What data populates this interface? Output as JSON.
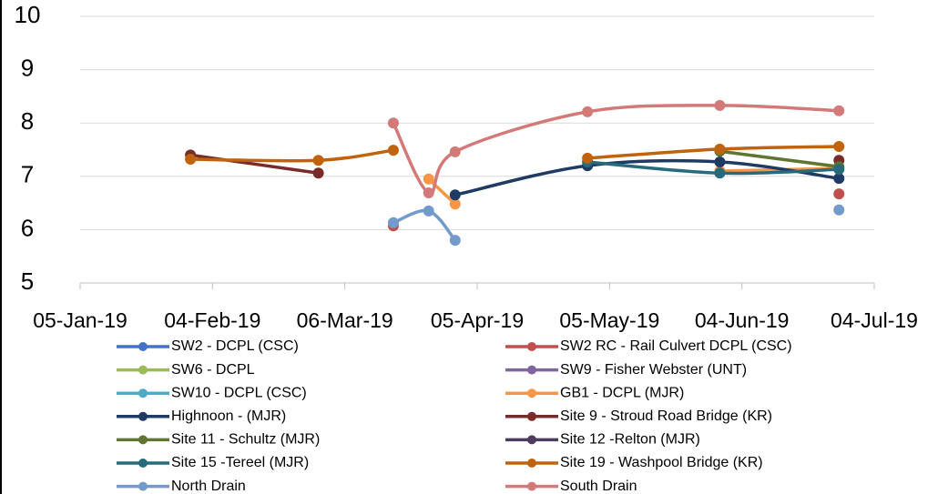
{
  "chart_data": {
    "type": "line",
    "x": [
      "2019-01-30",
      "2019-02-28",
      "2019-03-17",
      "2019-03-25",
      "2019-03-31",
      "2019-04-30",
      "2019-05-30",
      "2019-06-26"
    ],
    "xlim": [
      "2019-01-05",
      "2019-07-04"
    ],
    "xticks": [
      {
        "value": "2019-01-05",
        "label": "05-Jan-19"
      },
      {
        "value": "2019-02-04",
        "label": "04-Feb-19"
      },
      {
        "value": "2019-03-06",
        "label": "06-Mar-19"
      },
      {
        "value": "2019-04-05",
        "label": "05-Apr-19"
      },
      {
        "value": "2019-05-05",
        "label": "05-May-19"
      },
      {
        "value": "2019-06-04",
        "label": "04-Jun-19"
      },
      {
        "value": "2019-07-04",
        "label": "04-Jul-19"
      }
    ],
    "ylim": [
      5,
      10
    ],
    "yticks": [
      5,
      6,
      7,
      8,
      9,
      10
    ],
    "grid": true,
    "legend": "bottom",
    "series": [
      {
        "name": "SW2 - DCPL (CSC)",
        "color": "#4472c4",
        "values": [
          null,
          null,
          null,
          null,
          null,
          null,
          null,
          null
        ]
      },
      {
        "name": "SW2 RC - Rail Culvert DCPL (CSC)",
        "color": "#c0504d",
        "values": [
          null,
          null,
          6.07,
          null,
          null,
          null,
          null,
          6.67
        ]
      },
      {
        "name": "SW6 - DCPL",
        "color": "#9bbb59",
        "values": [
          null,
          null,
          null,
          null,
          null,
          null,
          null,
          null
        ]
      },
      {
        "name": "SW9 - Fisher Webster (UNT)",
        "color": "#8064a2",
        "values": [
          null,
          null,
          null,
          null,
          null,
          null,
          null,
          null
        ]
      },
      {
        "name": "SW10 - DCPL (CSC)",
        "color": "#4bacc6",
        "values": [
          null,
          null,
          null,
          null,
          null,
          null,
          null,
          null
        ]
      },
      {
        "name": "GB1 - DCPL (MJR)",
        "color": "#f79646",
        "values": [
          null,
          null,
          null,
          6.95,
          6.48,
          null,
          7.1,
          7.15
        ]
      },
      {
        "name": "Highnoon - (MJR)",
        "color": "#1f3b63",
        "values": [
          null,
          null,
          null,
          null,
          6.65,
          7.2,
          7.27,
          6.96
        ]
      },
      {
        "name": "Site 9 - Stroud Road Bridge (KR)",
        "color": "#772c2a",
        "values": [
          7.4,
          7.06,
          null,
          null,
          null,
          null,
          null,
          7.3
        ]
      },
      {
        "name": "Site 11 - Schultz (MJR)",
        "color": "#5f7530",
        "values": [
          null,
          null,
          null,
          null,
          null,
          null,
          7.47,
          7.18
        ]
      },
      {
        "name": "Site 12 -Relton (MJR)",
        "color": "#4d3b62",
        "values": [
          null,
          null,
          null,
          null,
          null,
          null,
          null,
          null
        ]
      },
      {
        "name": "Site 15 -Tereel (MJR)",
        "color": "#276a7c",
        "values": [
          null,
          null,
          null,
          null,
          null,
          7.27,
          7.06,
          7.13
        ]
      },
      {
        "name": "Site 19 - Washpool Bridge (KR)",
        "color": "#c0630e",
        "values": [
          7.32,
          7.3,
          7.49,
          null,
          null,
          7.34,
          7.51,
          7.56
        ]
      },
      {
        "name": "North Drain",
        "color": "#729aca",
        "values": [
          null,
          null,
          6.13,
          6.35,
          5.8,
          null,
          null,
          6.37
        ]
      },
      {
        "name": "South Drain",
        "color": "#d37a78",
        "values": [
          null,
          null,
          8.0,
          6.69,
          7.46,
          8.21,
          8.33,
          8.23
        ]
      }
    ]
  }
}
